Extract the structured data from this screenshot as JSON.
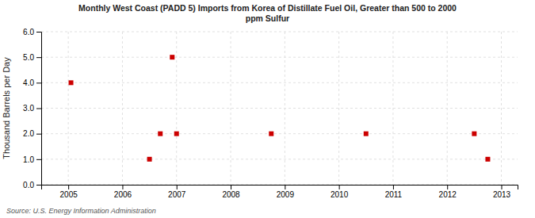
{
  "chart_data": {
    "type": "scatter",
    "title": "Monthly West Coast (PADD 5) Imports from Korea of Distillate Fuel Oil, Greater than 500 to 2000\nppm Sulfur",
    "y_label": "Thousand Barrels per Day",
    "source": "Source: U.S. Energy Information Administration",
    "x": [
      2005.05,
      2006.5,
      2006.7,
      2006.92,
      2007.0,
      2008.75,
      2010.5,
      2012.5,
      2012.75
    ],
    "values": [
      4.0,
      1.0,
      2.0,
      5.0,
      2.0,
      2.0,
      2.0,
      2.0,
      1.0
    ],
    "color": "#cc0000",
    "marker": "square",
    "xlim": [
      2004.5,
      2013.3
    ],
    "ylim": [
      0.0,
      6.0
    ],
    "xticks": [
      2005,
      2006,
      2007,
      2008,
      2009,
      2010,
      2011,
      2012,
      2013
    ],
    "yticks": [
      {
        "value": 0,
        "label": "0.0"
      },
      {
        "value": 1,
        "label": "1.0"
      },
      {
        "value": 2,
        "label": "2.0"
      },
      {
        "value": 3,
        "label": "3.0"
      },
      {
        "value": 4,
        "label": "4.0"
      },
      {
        "value": 5,
        "label": "5.0"
      },
      {
        "value": 6,
        "label": "6.0"
      }
    ],
    "grid": true
  }
}
